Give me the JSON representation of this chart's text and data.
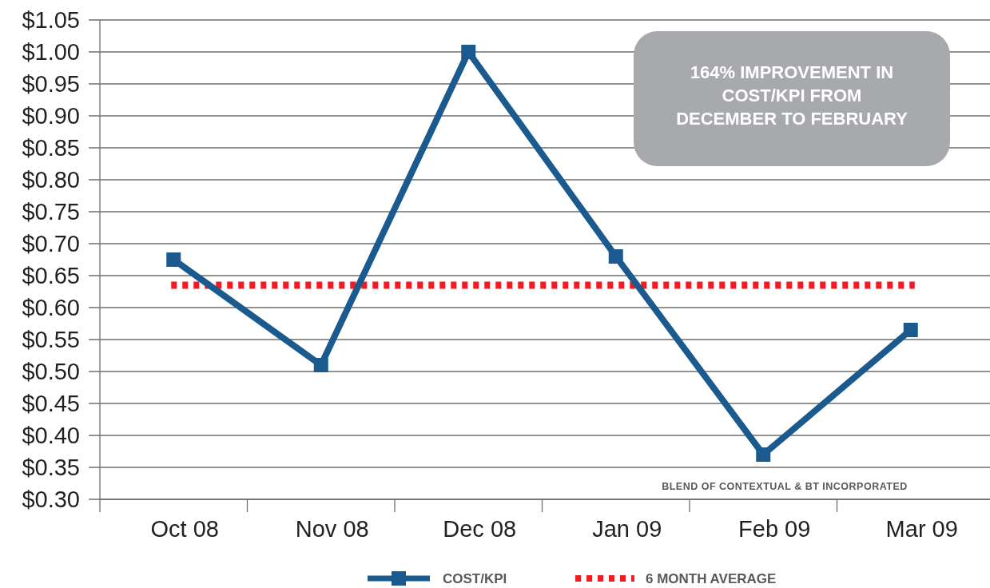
{
  "chart_data": {
    "type": "line",
    "categories": [
      "Oct 08",
      "Nov 08",
      "Dec 08",
      "Jan 09",
      "Feb 09",
      "Mar 09"
    ],
    "series": [
      {
        "name": "COST/KPI",
        "color": "#1b5a8e",
        "values": [
          0.675,
          0.51,
          1.0,
          0.68,
          0.37,
          0.565
        ]
      }
    ],
    "ylim": [
      0.3,
      1.05
    ],
    "yticks": [
      {
        "value": 0.3,
        "label": "$0.30"
      },
      {
        "value": 0.35,
        "label": "$0.35"
      },
      {
        "value": 0.4,
        "label": "$0.40"
      },
      {
        "value": 0.45,
        "label": "$0.45"
      },
      {
        "value": 0.5,
        "label": "$0.50"
      },
      {
        "value": 0.55,
        "label": "$0.55"
      },
      {
        "value": 0.6,
        "label": "$0.60"
      },
      {
        "value": 0.65,
        "label": "$0.65"
      },
      {
        "value": 0.7,
        "label": "$0.70"
      },
      {
        "value": 0.75,
        "label": "$0.75"
      },
      {
        "value": 0.8,
        "label": "$0.80"
      },
      {
        "value": 0.85,
        "label": "$0.85"
      },
      {
        "value": 0.9,
        "label": "$0.90"
      },
      {
        "value": 0.95,
        "label": "$0.95"
      },
      {
        "value": 1.0,
        "label": "$1.00"
      },
      {
        "value": 1.05,
        "label": "$1.05"
      }
    ],
    "ref_lines": [
      {
        "axis": "y",
        "value": 0.635,
        "label": "6 MONTH AVERAGE",
        "color": "#ee1c25",
        "line_style": "dotted"
      }
    ],
    "annotations": [
      "164% IMPROVEMENT IN COST/KPI FROM DECEMBER TO FEBRUARY",
      "BLEND OF CONTEXTUAL & BT INCORPORATED"
    ],
    "grid": "y",
    "legend": "bottom",
    "marker": "square",
    "line_style": "solid"
  }
}
